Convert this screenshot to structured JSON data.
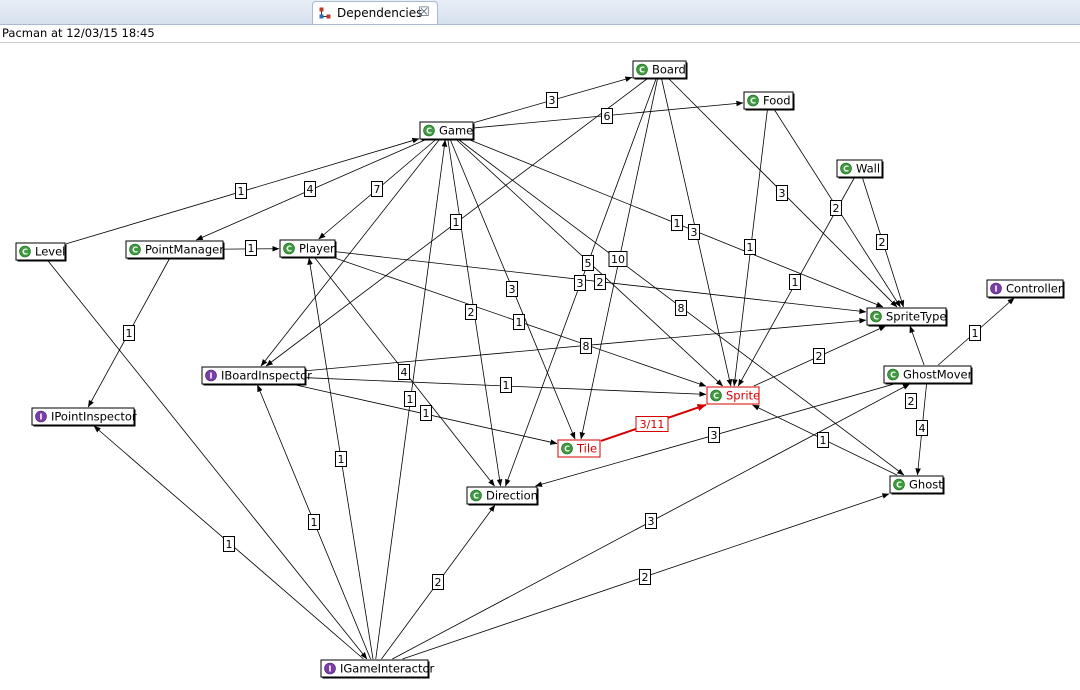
{
  "tab": {
    "label": "Dependencies",
    "icon": "dependency-graph-icon",
    "close_icon": "close-icon"
  },
  "header": {
    "text": "Pacman at 12/03/15 18:45"
  },
  "colors": {
    "highlight": "#d40000",
    "class_icon": "#3d9a3d",
    "interface_icon": "#7b3ea6"
  },
  "nodes": [
    {
      "id": "board",
      "label": "Board",
      "kind": "C"
    },
    {
      "id": "food",
      "label": "Food",
      "kind": "C"
    },
    {
      "id": "game",
      "label": "Game",
      "kind": "C"
    },
    {
      "id": "wall",
      "label": "Wall",
      "kind": "C"
    },
    {
      "id": "level",
      "label": "Level",
      "kind": "C"
    },
    {
      "id": "pointmanager",
      "label": "PointManager",
      "kind": "C"
    },
    {
      "id": "player",
      "label": "Player",
      "kind": "C"
    },
    {
      "id": "controller",
      "label": "Controller",
      "kind": "I"
    },
    {
      "id": "spritetype",
      "label": "SpriteType",
      "kind": "C"
    },
    {
      "id": "iboardinspector",
      "label": "IBoardInspector",
      "kind": "I"
    },
    {
      "id": "ghostmover",
      "label": "GhostMover",
      "kind": "C"
    },
    {
      "id": "sprite",
      "label": "Sprite",
      "kind": "C",
      "highlighted": true
    },
    {
      "id": "ipointinspector",
      "label": "IPointInspector",
      "kind": "I"
    },
    {
      "id": "tile",
      "label": "Tile",
      "kind": "C",
      "highlighted": true
    },
    {
      "id": "ghost",
      "label": "Ghost",
      "kind": "C"
    },
    {
      "id": "direction",
      "label": "Direction",
      "kind": "C"
    },
    {
      "id": "igameinteractor",
      "label": "IGameInteractor",
      "kind": "I"
    }
  ],
  "edges": [
    {
      "from": "game",
      "to": "board",
      "label": "3"
    },
    {
      "from": "game",
      "to": "food",
      "label": "6"
    },
    {
      "from": "level",
      "to": "game",
      "label": "1"
    },
    {
      "from": "game",
      "to": "pointmanager",
      "label": "4"
    },
    {
      "from": "game",
      "to": "player",
      "label": "7"
    },
    {
      "from": "board",
      "to": "iboardinspector",
      "label": "1"
    },
    {
      "from": "game",
      "to": "iboardinspector",
      "label": ""
    },
    {
      "from": "pointmanager",
      "to": "player",
      "label": "1"
    },
    {
      "from": "pointmanager",
      "to": "ipointinspector",
      "label": "1"
    },
    {
      "from": "level",
      "to": "igameinteractor",
      "label": ""
    },
    {
      "from": "game",
      "to": "spritetype",
      "label": "1"
    },
    {
      "from": "game",
      "to": "tile",
      "label": "3"
    },
    {
      "from": "game",
      "to": "direction",
      "label": "2"
    },
    {
      "from": "game",
      "to": "sprite",
      "label": "2"
    },
    {
      "from": "game",
      "to": "ghost",
      "label": "8"
    },
    {
      "from": "igameinteractor",
      "to": "game",
      "label": "1"
    },
    {
      "from": "board",
      "to": "direction",
      "label": "5"
    },
    {
      "from": "board",
      "to": "tile",
      "label": "10"
    },
    {
      "from": "board",
      "to": "sprite",
      "label": "3"
    },
    {
      "from": "board",
      "to": "spritetype",
      "label": "3"
    },
    {
      "from": "food",
      "to": "sprite",
      "label": "1"
    },
    {
      "from": "food",
      "to": "spritetype",
      "label": "2"
    },
    {
      "from": "wall",
      "to": "sprite",
      "label": "1"
    },
    {
      "from": "wall",
      "to": "spritetype",
      "label": "2"
    },
    {
      "from": "player",
      "to": "spritetype",
      "label": "3"
    },
    {
      "from": "player",
      "to": "sprite",
      "label": "1"
    },
    {
      "from": "player",
      "to": "direction",
      "label": "4"
    },
    {
      "from": "iboardinspector",
      "to": "spritetype",
      "label": "8"
    },
    {
      "from": "iboardinspector",
      "to": "sprite",
      "label": "1"
    },
    {
      "from": "iboardinspector",
      "to": "tile",
      "label": "1"
    },
    {
      "from": "sprite",
      "to": "spritetype",
      "label": "2"
    },
    {
      "from": "tile",
      "to": "sprite",
      "label": "3/11",
      "highlighted": true
    },
    {
      "from": "ghostmover",
      "to": "controller",
      "label": "1"
    },
    {
      "from": "ghostmover",
      "to": "direction",
      "label": "3"
    },
    {
      "from": "ghostmover",
      "to": "spritetype",
      "label": "2"
    },
    {
      "from": "ghostmover",
      "to": "ghost",
      "label": "4"
    },
    {
      "from": "ghost",
      "to": "sprite",
      "label": "1"
    },
    {
      "from": "igameinteractor",
      "to": "ipointinspector",
      "label": "1"
    },
    {
      "from": "igameinteractor",
      "to": "iboardinspector",
      "label": "1"
    },
    {
      "from": "igameinteractor",
      "to": "player",
      "label": "1"
    },
    {
      "from": "igameinteractor",
      "to": "direction",
      "label": "2"
    },
    {
      "from": "igameinteractor",
      "to": "ghost",
      "label": "2"
    },
    {
      "from": "igameinteractor",
      "to": "ghostmover",
      "label": "3"
    }
  ]
}
